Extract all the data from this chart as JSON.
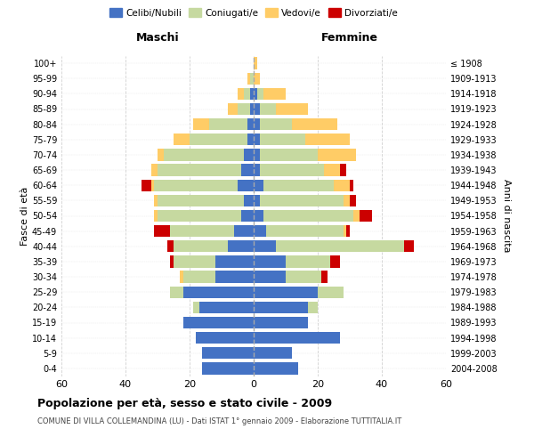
{
  "age_groups": [
    "0-4",
    "5-9",
    "10-14",
    "15-19",
    "20-24",
    "25-29",
    "30-34",
    "35-39",
    "40-44",
    "45-49",
    "50-54",
    "55-59",
    "60-64",
    "65-69",
    "70-74",
    "75-79",
    "80-84",
    "85-89",
    "90-94",
    "95-99",
    "100+"
  ],
  "birth_years": [
    "2004-2008",
    "1999-2003",
    "1994-1998",
    "1989-1993",
    "1984-1988",
    "1979-1983",
    "1974-1978",
    "1969-1973",
    "1964-1968",
    "1959-1963",
    "1954-1958",
    "1949-1953",
    "1944-1948",
    "1939-1943",
    "1934-1938",
    "1929-1933",
    "1924-1928",
    "1919-1923",
    "1914-1918",
    "1909-1913",
    "≤ 1908"
  ],
  "male_celibi": [
    16,
    16,
    18,
    22,
    17,
    22,
    12,
    12,
    8,
    6,
    4,
    3,
    5,
    4,
    3,
    2,
    2,
    1,
    1,
    0,
    0
  ],
  "male_coniugati": [
    0,
    0,
    0,
    0,
    2,
    4,
    10,
    13,
    17,
    20,
    26,
    27,
    26,
    26,
    25,
    18,
    12,
    4,
    2,
    1,
    0
  ],
  "male_vedovi": [
    0,
    0,
    0,
    0,
    0,
    0,
    1,
    0,
    0,
    0,
    1,
    1,
    1,
    2,
    2,
    5,
    5,
    3,
    2,
    1,
    0
  ],
  "male_divorziati": [
    0,
    0,
    0,
    0,
    0,
    0,
    0,
    1,
    2,
    5,
    0,
    0,
    3,
    0,
    0,
    0,
    0,
    0,
    0,
    0,
    0
  ],
  "female_celibi": [
    14,
    12,
    27,
    17,
    17,
    20,
    10,
    10,
    7,
    4,
    3,
    2,
    3,
    2,
    2,
    2,
    2,
    2,
    1,
    0,
    0
  ],
  "female_coniugati": [
    0,
    0,
    0,
    0,
    3,
    8,
    11,
    14,
    40,
    24,
    28,
    26,
    22,
    20,
    18,
    14,
    10,
    5,
    2,
    0,
    0
  ],
  "female_vedovi": [
    0,
    0,
    0,
    0,
    0,
    0,
    0,
    0,
    0,
    1,
    2,
    2,
    5,
    5,
    12,
    14,
    14,
    10,
    7,
    2,
    1
  ],
  "female_divorziati": [
    0,
    0,
    0,
    0,
    0,
    0,
    2,
    3,
    3,
    1,
    4,
    2,
    1,
    2,
    0,
    0,
    0,
    0,
    0,
    0,
    0
  ],
  "colors": {
    "celibi": "#4472C4",
    "coniugati": "#C6D9A0",
    "vedovi": "#FFCC66",
    "divorziati": "#CC0000"
  },
  "title": "Popolazione per età, sesso e stato civile - 2009",
  "subtitle": "COMUNE DI VILLA COLLEMANDINA (LU) - Dati ISTAT 1° gennaio 2009 - Elaborazione TUTTITALIA.IT",
  "ylabel_left": "Fasce di età",
  "ylabel_right": "Anni di nascita",
  "xlabel_left": "Maschi",
  "xlabel_right": "Femmine",
  "xlim": 60,
  "bg_color": "#FFFFFF",
  "grid_color": "#CCCCCC"
}
